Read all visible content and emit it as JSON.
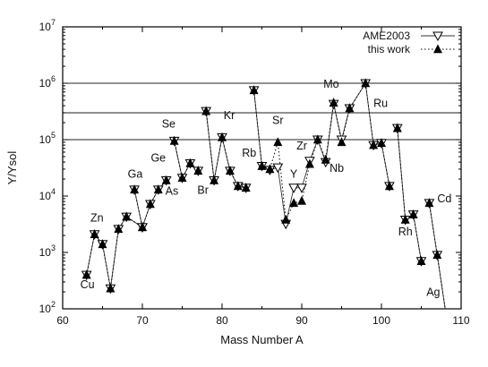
{
  "chart_data": {
    "type": "line",
    "xlabel": "Mass Number A",
    "ylabel": "Y/Ysol",
    "xlim": [
      60,
      110
    ],
    "ylim": [
      100,
      10000000
    ],
    "yscale": "log",
    "x_ticks": [
      60,
      70,
      80,
      90,
      100,
      110
    ],
    "x_tick_labels": [
      "60",
      "70",
      "80",
      "90",
      "100",
      "110"
    ],
    "y_ticks": [
      100,
      1000,
      10000,
      100000,
      1000000,
      10000000
    ],
    "y_tick_labels": [
      {
        "base": "10",
        "exp": "2"
      },
      {
        "base": "10",
        "exp": "3"
      },
      {
        "base": "10",
        "exp": "4"
      },
      {
        "base": "10",
        "exp": "5"
      },
      {
        "base": "10",
        "exp": "6"
      },
      {
        "base": "10",
        "exp": "7"
      }
    ],
    "grid": false,
    "reference_lines": [
      100000,
      300000,
      1000000
    ],
    "legend_position": "top-right",
    "series": [
      {
        "name": "AME2003",
        "marker": "open-down-triangle",
        "line": "solid",
        "segments": [
          [
            [
              63,
              400
            ],
            [
              64,
              2100
            ],
            [
              65,
              1400
            ],
            [
              66,
              230
            ],
            [
              67,
              2600
            ],
            [
              68,
              4300
            ],
            [
              70,
              2800
            ],
            [
              71,
              7200
            ],
            [
              72,
              13000
            ],
            [
              73,
              19000
            ]
          ],
          [
            [
              69,
              13000
            ],
            [
              70,
              2800
            ]
          ],
          [
            [
              74,
              95000
            ],
            [
              75,
              21000
            ],
            [
              76,
              38000
            ],
            [
              77,
              28000
            ]
          ],
          [
            [
              78,
              320000
            ],
            [
              79,
              19000
            ],
            [
              80,
              110000
            ],
            [
              81,
              28000
            ],
            [
              82,
              15000
            ],
            [
              83,
              14000
            ]
          ],
          [
            [
              84,
              750000
            ],
            [
              85,
              34000
            ],
            [
              86,
              29000
            ],
            [
              87,
              32000
            ],
            [
              88,
              3200
            ],
            [
              89,
              14000
            ],
            [
              90,
              14000
            ],
            [
              91,
              42000
            ],
            [
              92,
              100000
            ],
            [
              93,
              40000
            ],
            [
              94,
              430000
            ],
            [
              95,
              100000
            ],
            [
              96,
              360000
            ],
            [
              98,
              1000000
            ],
            [
              99,
              80000
            ],
            [
              100,
              87000
            ],
            [
              101,
              15000
            ]
          ],
          [
            [
              102,
              160000
            ],
            [
              103,
              3800
            ],
            [
              104,
              4700
            ],
            [
              105,
              700
            ]
          ],
          [
            [
              106,
              7500
            ],
            [
              107,
              900
            ],
            [
              108,
              100
            ]
          ]
        ]
      },
      {
        "name": "this work",
        "marker": "filled-up-triangle",
        "line": "dotted",
        "segments": [
          [
            [
              63,
              400
            ],
            [
              64,
              2100
            ],
            [
              65,
              1400
            ],
            [
              66,
              230
            ],
            [
              67,
              2600
            ],
            [
              68,
              4300
            ],
            [
              70,
              2800
            ],
            [
              71,
              7200
            ],
            [
              72,
              13000
            ],
            [
              73,
              19000
            ]
          ],
          [
            [
              69,
              13000
            ],
            [
              70,
              2800
            ]
          ],
          [
            [
              74,
              95000
            ],
            [
              75,
              21000
            ],
            [
              76,
              38000
            ],
            [
              77,
              28000
            ]
          ],
          [
            [
              78,
              320000
            ],
            [
              79,
              19000
            ],
            [
              80,
              110000
            ],
            [
              81,
              28000
            ],
            [
              82,
              15000
            ],
            [
              83,
              14000
            ]
          ],
          [
            [
              84,
              750000
            ],
            [
              85,
              34000
            ],
            [
              86,
              30000
            ],
            [
              87,
              90000
            ],
            [
              88,
              3800
            ],
            [
              89,
              7500
            ],
            [
              90,
              8200
            ],
            [
              91,
              37000
            ],
            [
              92,
              100000
            ],
            [
              93,
              44000
            ],
            [
              94,
              450000
            ],
            [
              95,
              90000
            ],
            [
              96,
              360000
            ],
            [
              98,
              1000000
            ],
            [
              99,
              80000
            ],
            [
              100,
              87000
            ],
            [
              101,
              15000
            ]
          ],
          [
            [
              102,
              160000
            ],
            [
              103,
              3800
            ],
            [
              104,
              4700
            ],
            [
              105,
              700
            ]
          ],
          [
            [
              106,
              7500
            ],
            [
              107,
              900
            ],
            [
              108,
              100
            ]
          ]
        ]
      }
    ],
    "element_labels": [
      {
        "text": "Cu",
        "x": 63.1,
        "y": 230
      },
      {
        "text": "Zn",
        "x": 64.3,
        "y": 3500
      },
      {
        "text": "Ga",
        "x": 69.1,
        "y": 21000
      },
      {
        "text": "Ge",
        "x": 72.0,
        "y": 41000
      },
      {
        "text": "As",
        "x": 73.7,
        "y": 10500
      },
      {
        "text": "Se",
        "x": 73.3,
        "y": 165000
      },
      {
        "text": "Br",
        "x": 77.6,
        "y": 11000
      },
      {
        "text": "Kr",
        "x": 80.9,
        "y": 230000
      },
      {
        "text": "Rb",
        "x": 83.4,
        "y": 50000
      },
      {
        "text": "Sr",
        "x": 87.0,
        "y": 190000
      },
      {
        "text": "Y",
        "x": 89.0,
        "y": 21000
      },
      {
        "text": "Zr",
        "x": 90.0,
        "y": 67000
      },
      {
        "text": "Nb",
        "x": 94.4,
        "y": 27000
      },
      {
        "text": "Mo",
        "x": 93.7,
        "y": 830000
      },
      {
        "text": "Ru",
        "x": 99.9,
        "y": 380000
      },
      {
        "text": "Rh",
        "x": 103.0,
        "y": 2000
      },
      {
        "text": "Cd",
        "x": 107.9,
        "y": 7800
      },
      {
        "text": "Ag",
        "x": 106.5,
        "y": 170
      }
    ]
  }
}
